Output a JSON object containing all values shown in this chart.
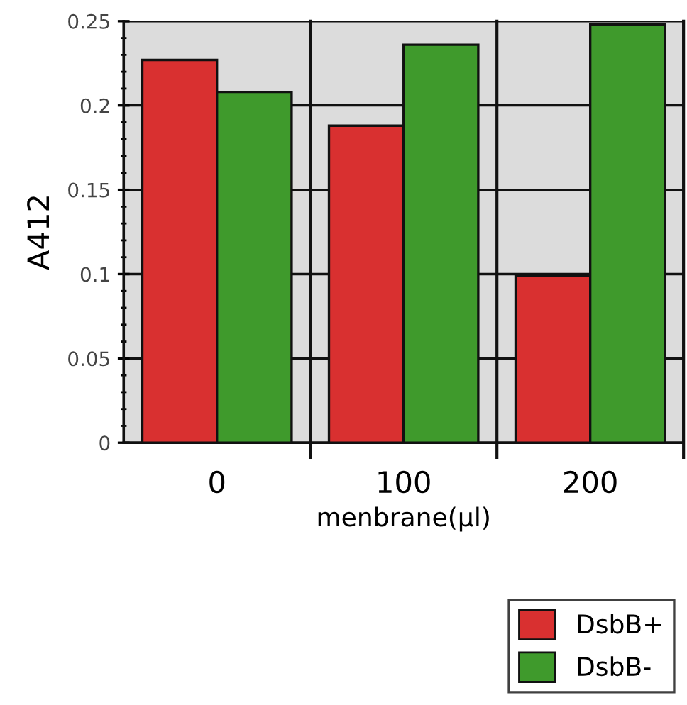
{
  "chart_data": {
    "type": "bar",
    "xlabel": "menbrane(μl)",
    "ylabel": "A412",
    "categories": [
      "0",
      "100",
      "200"
    ],
    "series": [
      {
        "name": "DsbB+",
        "color": "#d93030",
        "values": [
          0.227,
          0.188,
          0.099
        ]
      },
      {
        "name": "DsbB-",
        "color": "#3f9a2c",
        "values": [
          0.208,
          0.236,
          0.248
        ]
      }
    ],
    "ylim": [
      0,
      0.25
    ],
    "yticks": [
      {
        "value": 0,
        "label": "0"
      },
      0.05,
      0.1,
      0.15,
      0.2,
      0.25
    ],
    "grid": true,
    "legend": "bottom right"
  }
}
